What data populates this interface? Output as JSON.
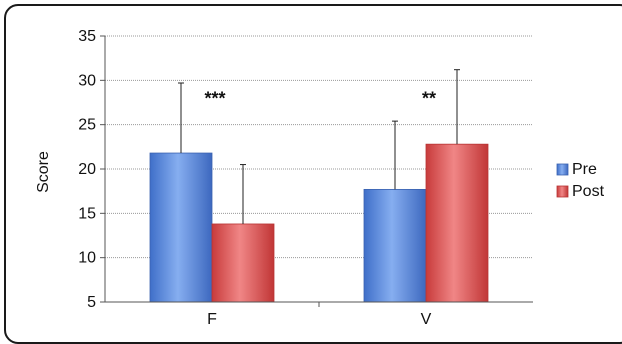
{
  "chart_data": {
    "type": "bar",
    "title": "",
    "xlabel": "",
    "ylabel": "Score",
    "ylim": [
      5,
      35
    ],
    "yticks": [
      5,
      10,
      15,
      20,
      25,
      30,
      35
    ],
    "grid": true,
    "legend_position": "right",
    "categories": [
      "F",
      "V"
    ],
    "series": [
      {
        "name": "Pre",
        "color": "#5b8fe0",
        "values": [
          21.8,
          17.7
        ],
        "errors": [
          7.9,
          7.7
        ]
      },
      {
        "name": "Post",
        "color": "#e05a5a",
        "values": [
          13.8,
          22.8
        ],
        "errors": [
          6.7,
          8.4
        ]
      }
    ],
    "annotations": [
      "***",
      "**"
    ]
  }
}
